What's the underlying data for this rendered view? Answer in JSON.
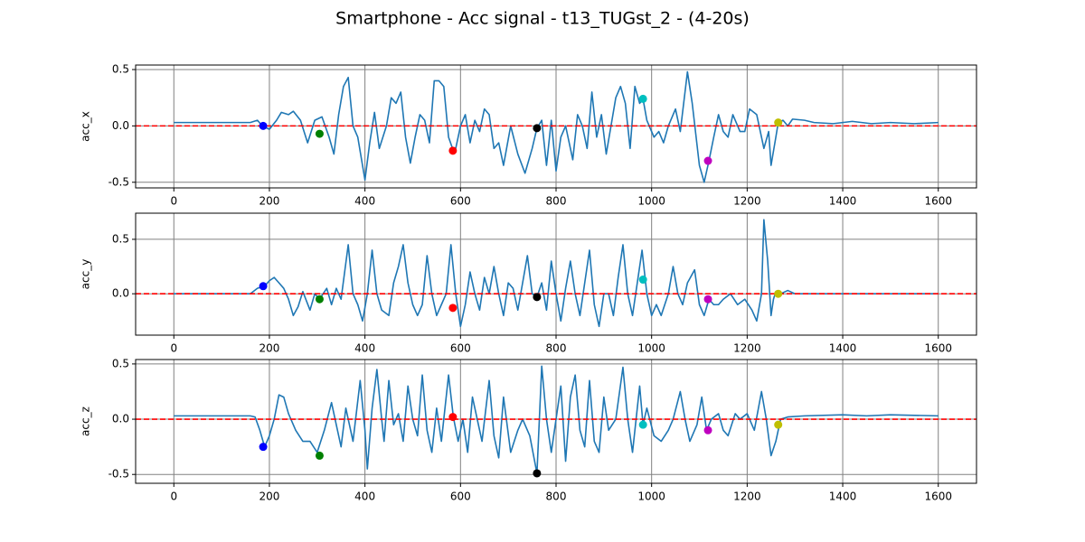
{
  "title": "Smartphone - Acc signal - t13_TUGst_2 - (4-20s)",
  "chart_data": [
    {
      "type": "line",
      "ylabel": "acc_x",
      "xlim": [
        -80,
        1680
      ],
      "ylim": [
        -0.55,
        0.54
      ],
      "xticks": [
        0,
        200,
        400,
        600,
        800,
        1000,
        1200,
        1400,
        1600
      ],
      "yticks": [
        -0.5,
        {
          "value": 0,
          "label": "0.0"
        },
        0.5
      ],
      "grid": true,
      "grid_color": "#808080",
      "hline": {
        "value": 0,
        "color": "#ff0000"
      },
      "x": [
        0,
        160,
        175,
        185,
        200,
        215,
        225,
        240,
        250,
        265,
        280,
        295,
        310,
        325,
        335,
        345,
        355,
        365,
        375,
        385,
        400,
        410,
        420,
        430,
        445,
        455,
        465,
        475,
        485,
        495,
        505,
        515,
        525,
        535,
        545,
        555,
        565,
        575,
        585,
        590,
        600,
        610,
        620,
        630,
        640,
        650,
        660,
        670,
        680,
        690,
        705,
        720,
        735,
        750,
        760,
        770,
        780,
        790,
        800,
        810,
        820,
        835,
        845,
        855,
        865,
        875,
        885,
        895,
        905,
        915,
        925,
        935,
        945,
        955,
        965,
        975,
        982,
        990,
        1005,
        1015,
        1025,
        1035,
        1050,
        1060,
        1075,
        1085,
        1100,
        1110,
        1120,
        1130,
        1140,
        1150,
        1160,
        1170,
        1185,
        1195,
        1205,
        1220,
        1235,
        1245,
        1250,
        1260,
        1265,
        1275,
        1285,
        1295,
        1320,
        1340,
        1380,
        1420,
        1460,
        1500,
        1550,
        1600
      ],
      "series": [
        {
          "color": "#1f77b4",
          "values": [
            0.03,
            0.03,
            0.05,
            0.0,
            -0.03,
            0.05,
            0.12,
            0.1,
            0.13,
            0.05,
            -0.15,
            0.05,
            0.08,
            -0.1,
            -0.25,
            0.1,
            0.35,
            0.43,
            0.0,
            -0.1,
            -0.48,
            -0.15,
            0.12,
            -0.2,
            0.0,
            0.25,
            0.2,
            0.3,
            -0.1,
            -0.33,
            -0.1,
            0.1,
            0.05,
            -0.15,
            0.4,
            0.4,
            0.35,
            -0.1,
            -0.22,
            -0.2,
            0.0,
            0.1,
            -0.15,
            0.05,
            -0.05,
            0.15,
            0.1,
            -0.2,
            -0.15,
            -0.35,
            0.0,
            -0.25,
            -0.42,
            -0.2,
            -0.02,
            0.05,
            -0.35,
            0.05,
            -0.4,
            -0.1,
            0.0,
            -0.3,
            0.1,
            0.0,
            -0.2,
            0.3,
            -0.1,
            0.1,
            -0.25,
            0.0,
            0.25,
            0.35,
            0.2,
            -0.2,
            0.35,
            0.2,
            0.24,
            0.05,
            -0.1,
            -0.05,
            -0.15,
            0.0,
            0.15,
            -0.05,
            0.48,
            0.2,
            -0.35,
            -0.5,
            -0.31,
            -0.1,
            0.1,
            -0.05,
            -0.1,
            0.1,
            -0.05,
            -0.05,
            0.15,
            0.1,
            -0.2,
            -0.05,
            -0.35,
            -0.1,
            0.03,
            0.05,
            0.0,
            0.06,
            0.05,
            0.03,
            0.02,
            0.04,
            0.02,
            0.03,
            0.02,
            0.03
          ]
        }
      ],
      "points": {
        "x": [
          187,
          305,
          584,
          760,
          982,
          1118,
          1265
        ],
        "values": [
          0.0,
          -0.07,
          -0.22,
          -0.02,
          0.24,
          -0.31,
          0.03
        ],
        "colors": [
          "#0000ff",
          "#008000",
          "#ff0000",
          "#000000",
          "#00bfbf",
          "#bf00bf",
          "#bfbf00"
        ]
      }
    },
    {
      "type": "line",
      "ylabel": "acc_y",
      "xlim": [
        -80,
        1680
      ],
      "ylim": [
        -0.38,
        0.74
      ],
      "xticks": [
        0,
        200,
        400,
        600,
        800,
        1000,
        1200,
        1400,
        1600
      ],
      "yticks": [
        {
          "value": 0,
          "label": "0.0"
        },
        0.5
      ],
      "grid": true,
      "grid_color": "#808080",
      "hline": {
        "value": 0,
        "color": "#ff0000"
      },
      "x": [
        0,
        160,
        175,
        190,
        200,
        210,
        220,
        230,
        240,
        250,
        260,
        270,
        285,
        295,
        305,
        320,
        330,
        340,
        350,
        365,
        375,
        385,
        395,
        405,
        415,
        425,
        435,
        450,
        460,
        470,
        480,
        490,
        500,
        510,
        520,
        530,
        540,
        550,
        560,
        570,
        580,
        590,
        600,
        610,
        620,
        630,
        640,
        650,
        660,
        670,
        680,
        690,
        700,
        710,
        720,
        730,
        740,
        750,
        760,
        770,
        780,
        790,
        800,
        810,
        820,
        830,
        840,
        850,
        860,
        870,
        880,
        890,
        900,
        910,
        920,
        930,
        940,
        950,
        960,
        970,
        980,
        990,
        1000,
        1010,
        1020,
        1035,
        1045,
        1055,
        1065,
        1075,
        1090,
        1100,
        1110,
        1120,
        1130,
        1140,
        1150,
        1165,
        1180,
        1195,
        1210,
        1220,
        1230,
        1235,
        1243,
        1250,
        1255,
        1260,
        1270,
        1285,
        1300,
        1400,
        1600
      ],
      "series": [
        {
          "color": "#1f77b4",
          "values": [
            0,
            0,
            0.05,
            0.07,
            0.12,
            0.15,
            0.1,
            0.05,
            -0.05,
            -0.2,
            -0.12,
            0.02,
            -0.15,
            0.0,
            -0.05,
            0.05,
            -0.1,
            0.05,
            -0.05,
            0.45,
            0.0,
            -0.1,
            -0.25,
            0.0,
            0.4,
            0.0,
            -0.15,
            -0.2,
            0.1,
            0.25,
            0.45,
            0.1,
            -0.1,
            -0.2,
            -0.1,
            0.35,
            0.0,
            -0.2,
            -0.1,
            0.0,
            0.45,
            0.0,
            -0.3,
            -0.1,
            0.2,
            0.0,
            -0.15,
            0.15,
            0.0,
            0.25,
            0.0,
            -0.2,
            0.1,
            0.05,
            -0.15,
            0.1,
            0.35,
            0.0,
            -0.03,
            0.1,
            -0.15,
            0.3,
            0.0,
            -0.25,
            0.05,
            0.3,
            0.0,
            -0.2,
            0.1,
            0.4,
            -0.1,
            -0.3,
            0.0,
            0.0,
            -0.2,
            0.15,
            0.45,
            0.0,
            -0.2,
            0.1,
            0.4,
            0.0,
            -0.2,
            -0.1,
            -0.2,
            0.0,
            0.25,
            0.0,
            -0.1,
            0.1,
            0.22,
            -0.1,
            -0.2,
            -0.05,
            -0.1,
            -0.1,
            -0.05,
            0.0,
            -0.1,
            -0.05,
            -0.15,
            -0.25,
            0.0,
            0.68,
            0.3,
            -0.2,
            -0.05,
            0.02,
            0.0,
            0.03,
            0.0,
            0.0,
            0.0
          ]
        }
      ],
      "points": {
        "x": [
          187,
          305,
          584,
          760,
          982,
          1118,
          1265
        ],
        "values": [
          0.07,
          -0.05,
          -0.13,
          -0.03,
          0.13,
          -0.05,
          0.0
        ],
        "colors": [
          "#0000ff",
          "#008000",
          "#ff0000",
          "#000000",
          "#00bfbf",
          "#bf00bf",
          "#bfbf00"
        ]
      }
    },
    {
      "type": "line",
      "ylabel": "acc_z",
      "xlim": [
        -80,
        1680
      ],
      "ylim": [
        -0.58,
        0.54
      ],
      "xticks": [
        0,
        200,
        400,
        600,
        800,
        1000,
        1200,
        1400,
        1600
      ],
      "yticks": [
        -0.5,
        {
          "value": 0,
          "label": "0.0"
        },
        0.5
      ],
      "grid": true,
      "grid_color": "#808080",
      "hline": {
        "value": 0,
        "color": "#ff0000"
      },
      "x": [
        0,
        160,
        170,
        180,
        190,
        200,
        210,
        220,
        230,
        240,
        255,
        270,
        285,
        300,
        315,
        330,
        340,
        350,
        360,
        370,
        375,
        390,
        400,
        405,
        415,
        425,
        435,
        440,
        450,
        460,
        470,
        480,
        490,
        500,
        510,
        520,
        530,
        540,
        550,
        560,
        575,
        585,
        595,
        605,
        615,
        625,
        635,
        645,
        660,
        670,
        680,
        690,
        705,
        720,
        730,
        745,
        760,
        770,
        780,
        790,
        800,
        810,
        820,
        830,
        840,
        850,
        860,
        870,
        880,
        890,
        900,
        910,
        925,
        940,
        950,
        960,
        975,
        982,
        990,
        1005,
        1020,
        1035,
        1045,
        1060,
        1070,
        1080,
        1095,
        1105,
        1115,
        1125,
        1140,
        1150,
        1160,
        1175,
        1185,
        1200,
        1215,
        1230,
        1240,
        1250,
        1260,
        1270,
        1285,
        1320,
        1400,
        1450,
        1500,
        1600
      ],
      "series": [
        {
          "color": "#1f77b4",
          "values": [
            0.03,
            0.03,
            0.02,
            -0.1,
            -0.25,
            -0.15,
            0.0,
            0.22,
            0.2,
            0.05,
            -0.1,
            -0.2,
            -0.2,
            -0.3,
            -0.1,
            0.15,
            -0.05,
            -0.25,
            0.1,
            -0.1,
            -0.2,
            0.35,
            -0.1,
            -0.45,
            0.1,
            0.45,
            0.0,
            -0.2,
            0.35,
            -0.05,
            0.05,
            -0.2,
            0.3,
            0.0,
            -0.15,
            0.4,
            -0.1,
            -0.3,
            0.1,
            -0.2,
            0.4,
            0.02,
            -0.2,
            0.0,
            -0.3,
            0.2,
            0.0,
            -0.2,
            0.35,
            -0.15,
            -0.35,
            0.2,
            -0.3,
            -0.1,
            0.0,
            -0.15,
            -0.49,
            0.48,
            0.0,
            -0.3,
            0.0,
            0.3,
            -0.38,
            0.2,
            0.4,
            -0.1,
            -0.25,
            0.35,
            -0.2,
            -0.3,
            0.2,
            -0.1,
            0.0,
            0.47,
            0.0,
            -0.3,
            0.3,
            -0.05,
            0.1,
            -0.15,
            -0.2,
            -0.1,
            0.0,
            0.25,
            0.0,
            -0.2,
            -0.05,
            0.2,
            -0.1,
            0.0,
            0.05,
            -0.1,
            -0.15,
            0.05,
            0.0,
            0.05,
            -0.1,
            0.25,
            0.0,
            -0.33,
            -0.2,
            0.0,
            0.02,
            0.03,
            0.04,
            0.03,
            0.04,
            0.03
          ]
        }
      ],
      "points": {
        "x": [
          187,
          305,
          584,
          760,
          982,
          1118,
          1265
        ],
        "values": [
          -0.25,
          -0.33,
          0.02,
          -0.49,
          -0.05,
          -0.1,
          -0.05
        ],
        "colors": [
          "#0000ff",
          "#008000",
          "#ff0000",
          "#000000",
          "#00bfbf",
          "#bf00bf",
          "#bfbf00"
        ]
      }
    }
  ]
}
